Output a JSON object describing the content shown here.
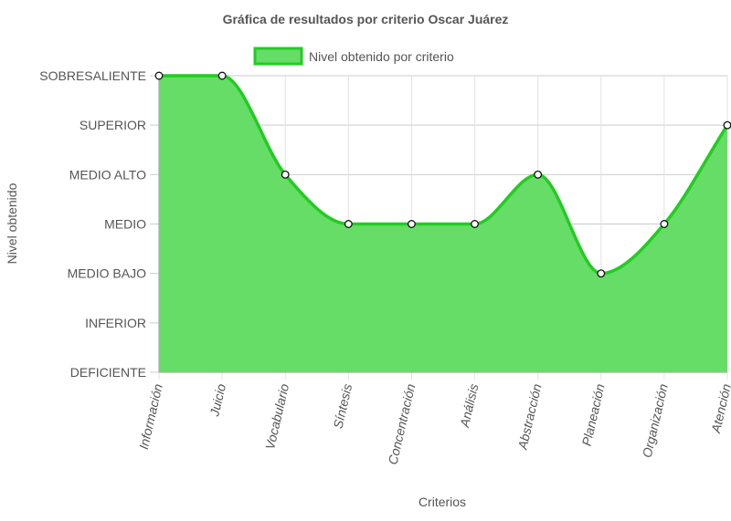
{
  "chart_data": {
    "type": "area",
    "title": "Gráfica de resultados por criterio Oscar Juárez",
    "xlabel": "Criterios",
    "ylabel": "Nivel obtenido",
    "y_levels": [
      "DEFICIENTE",
      "INFERIOR",
      "MEDIO BAJO",
      "MEDIO",
      "MEDIO ALTO",
      "SUPERIOR",
      "SOBRESALIENTE"
    ],
    "categories": [
      "Información",
      "Juicio",
      "Vocabulario",
      "Síntesis",
      "Concentración",
      "Análisis",
      "Abstracción",
      "Planeación",
      "Organización",
      "Atención"
    ],
    "series": [
      {
        "name": "Nivel obtenido por criterio",
        "values": [
          6,
          6,
          4,
          3,
          3,
          3,
          4,
          2,
          3,
          5
        ],
        "fill_color": "#66dd66",
        "line_color": "#22cc22"
      }
    ],
    "ylim": [
      0,
      6
    ],
    "grid": true,
    "legend_position": "top"
  }
}
